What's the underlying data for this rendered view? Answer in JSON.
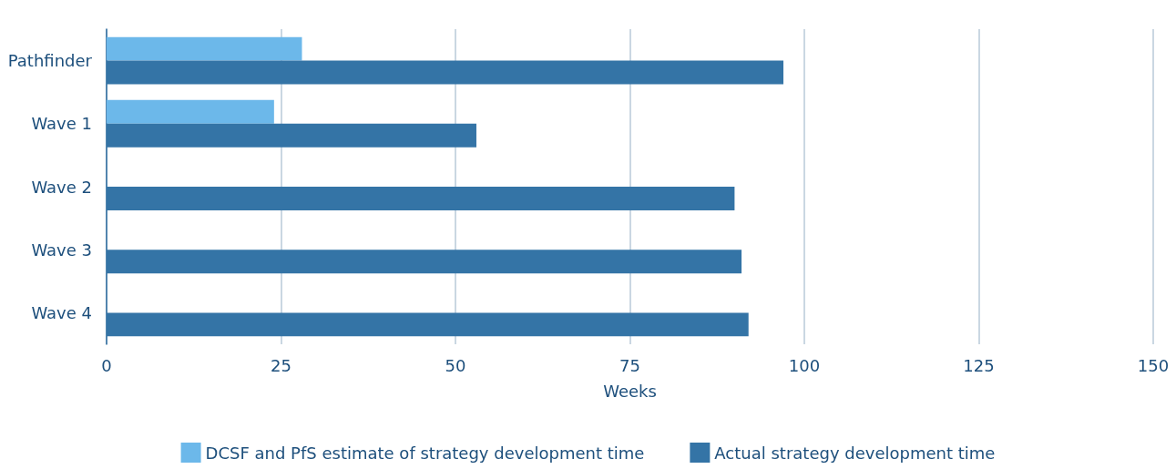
{
  "chart_data": {
    "type": "bar",
    "orientation": "horizontal",
    "xlabel": "Weeks",
    "categories": [
      "Pathfinder",
      "Wave 1",
      "Wave 2",
      "Wave 3",
      "Wave 4"
    ],
    "series": [
      {
        "name": "DCSF and PfS estimate of strategy development time",
        "color": "#6cb8ea",
        "values": [
          28,
          24,
          null,
          null,
          null
        ]
      },
      {
        "name": "Actual strategy development time",
        "color": "#3474a6",
        "values": [
          97,
          53,
          90,
          91,
          92
        ]
      }
    ],
    "xlim": [
      0,
      150
    ],
    "xticks": [
      0,
      25,
      50,
      75,
      100,
      125,
      150
    ],
    "grid": "x",
    "legend": "bottom"
  }
}
